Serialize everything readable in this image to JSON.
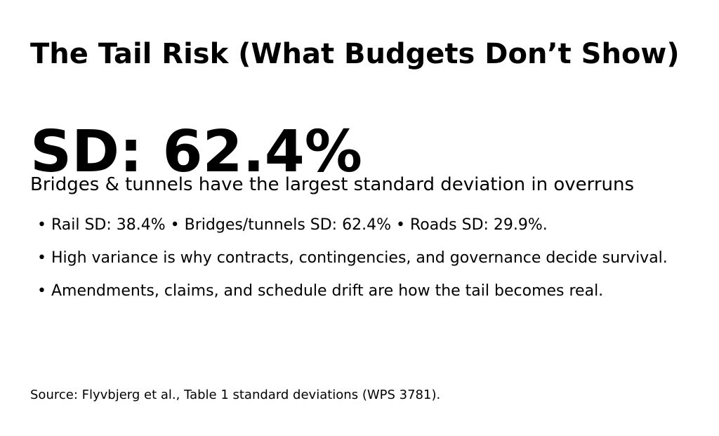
{
  "title": "The Tail Risk (What Budgets Don’t Show)",
  "headline_stat": "SD: 62.4%",
  "subtitle": "Bridges & tunnels have the largest standard deviation in overruns",
  "bullets": [
    "• Rail SD: 38.4% • Bridges/tunnels SD: 62.4% • Roads SD: 29.9%.",
    "• High variance is why contracts, contingencies, and governance decide survival.",
    "• Amendments, claims, and schedule drift are how the tail becomes real."
  ],
  "source": "Source: Flyvbjerg et al., Table 1 standard deviations (WPS 3781)."
}
